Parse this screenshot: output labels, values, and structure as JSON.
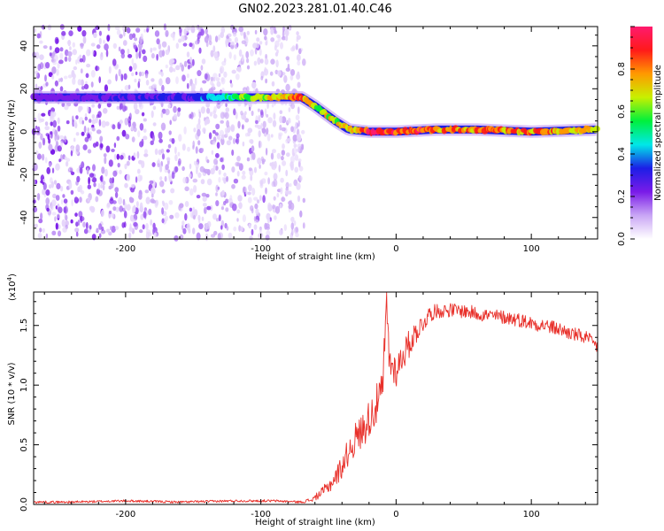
{
  "figure_title": "GN02.2023.281.01.40.C46",
  "chart_data": [
    {
      "type": "heatmap",
      "title": "",
      "xlabel": "Height of straight line (km)",
      "ylabel": "Frequency (Hz)",
      "xlim": [
        -268,
        149
      ],
      "ylim": [
        -50,
        49
      ],
      "xticks": [
        -200,
        -100,
        0,
        100
      ],
      "xtick_labels": [
        "-200",
        "-100",
        "0",
        "100"
      ],
      "yticks": [
        -40,
        -20,
        0,
        20,
        40
      ],
      "ytick_labels": [
        "-40",
        "-20",
        "0",
        "20",
        "40"
      ],
      "noise_region_x": [
        -268,
        -68
      ],
      "ridge": {
        "x": [
          -268,
          -150,
          -70,
          -60,
          -45,
          -35,
          -20,
          0,
          30,
          60,
          100,
          149
        ],
        "y": [
          16,
          16,
          16,
          12,
          5,
          1,
          0,
          0,
          1,
          1,
          0,
          1
        ],
        "amplitude": [
          0.25,
          0.35,
          0.95,
          0.75,
          0.8,
          0.85,
          1.0,
          1.0,
          0.95,
          0.9,
          0.95,
          0.8
        ]
      },
      "colorbar": {
        "label": "Normalized spectral amplitude",
        "range": [
          0,
          1
        ],
        "ticks": [
          "0.0",
          "0.2",
          "0.4",
          "0.6",
          "0.8"
        ],
        "colors": [
          "#ffffff",
          "#c9a6f5",
          "#7a1be8",
          "#1c1ee6",
          "#00e8e8",
          "#00f03c",
          "#c8f000",
          "#ff9900",
          "#ff1a1a",
          "#ff1a6e"
        ]
      },
      "grid": false
    },
    {
      "type": "line",
      "title": "",
      "xlabel": "Height of straight line (km)",
      "ylabel": "SNR (10 * v/v)",
      "multiplier": "(x10^4)",
      "multiplier_base": "(x10",
      "multiplier_exp": "4",
      "multiplier_end": ")",
      "xlim": [
        -268,
        149
      ],
      "ylim": [
        0,
        1.78
      ],
      "xticks": [
        -200,
        -100,
        0,
        100
      ],
      "xtick_labels": [
        "-200",
        "-100",
        "0",
        "100"
      ],
      "yticks": [
        0,
        0.5,
        1.0,
        1.5
      ],
      "ytick_labels": [
        "0.0",
        "0.5",
        "1.0",
        "1.5"
      ],
      "color": "#e8302a",
      "grid": false,
      "series": [
        {
          "x": [
            -268,
            -240,
            -200,
            -160,
            -120,
            -90,
            -70,
            -62,
            -55,
            -50,
            -45,
            -40,
            -35,
            -30,
            -25,
            -20,
            -15,
            -10,
            -7,
            -5,
            0,
            5,
            10,
            15,
            20,
            25,
            30,
            40,
            50,
            60,
            70,
            80,
            90,
            100,
            110,
            120,
            130,
            140,
            149
          ],
          "y": [
            0.02,
            0.02,
            0.03,
            0.02,
            0.03,
            0.03,
            0.02,
            0.04,
            0.1,
            0.15,
            0.22,
            0.32,
            0.45,
            0.55,
            0.62,
            0.72,
            0.82,
            0.95,
            1.68,
            1.2,
            1.12,
            1.25,
            1.35,
            1.45,
            1.52,
            1.6,
            1.62,
            1.63,
            1.62,
            1.6,
            1.58,
            1.57,
            1.55,
            1.52,
            1.5,
            1.47,
            1.43,
            1.4,
            1.32
          ],
          "noise": [
            0.01,
            0.01,
            0.01,
            0.01,
            0.01,
            0.01,
            0.01,
            0.02,
            0.04,
            0.06,
            0.08,
            0.1,
            0.12,
            0.14,
            0.15,
            0.16,
            0.17,
            0.18,
            0.15,
            0.15,
            0.14,
            0.13,
            0.12,
            0.1,
            0.08,
            0.07,
            0.06,
            0.06,
            0.06,
            0.06,
            0.06,
            0.06,
            0.06,
            0.06,
            0.06,
            0.06,
            0.06,
            0.06,
            0.06
          ]
        }
      ]
    }
  ]
}
